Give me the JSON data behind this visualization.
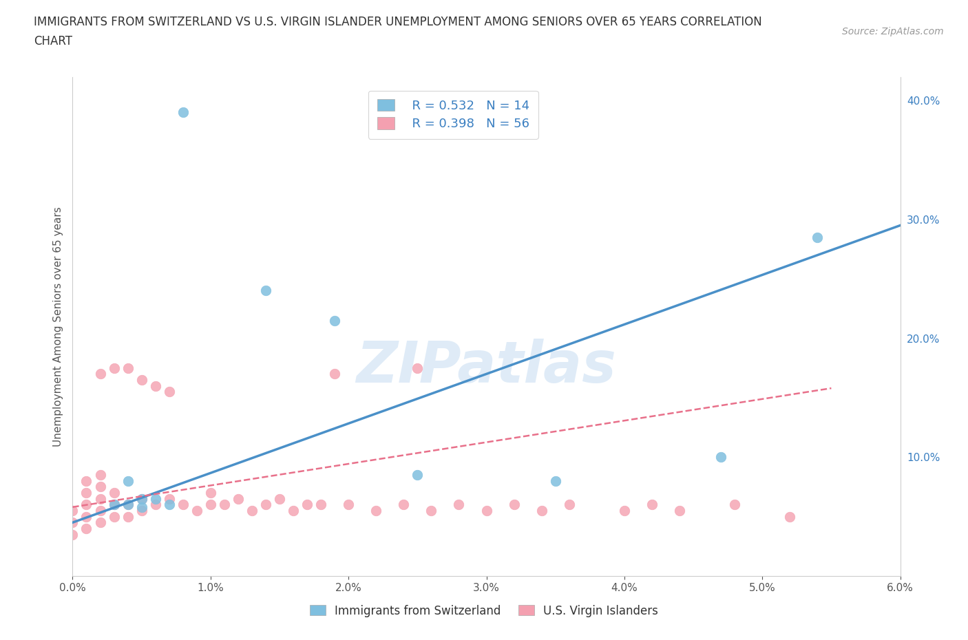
{
  "title_line1": "IMMIGRANTS FROM SWITZERLAND VS U.S. VIRGIN ISLANDER UNEMPLOYMENT AMONG SENIORS OVER 65 YEARS CORRELATION",
  "title_line2": "CHART",
  "source": "Source: ZipAtlas.com",
  "ylabel": "Unemployment Among Seniors over 65 years",
  "xlim": [
    0.0,
    0.06
  ],
  "ylim": [
    0.0,
    0.42
  ],
  "xticks": [
    0.0,
    0.01,
    0.02,
    0.03,
    0.04,
    0.05,
    0.06
  ],
  "xticklabels": [
    "0.0%",
    "1.0%",
    "2.0%",
    "3.0%",
    "4.0%",
    "5.0%",
    "6.0%"
  ],
  "yticks_right": [
    0.1,
    0.2,
    0.3,
    0.4
  ],
  "yticks_right_labels": [
    "10.0%",
    "20.0%",
    "30.0%",
    "40.0%"
  ],
  "legend_r1": "R = 0.532   N = 14",
  "legend_r2": "R = 0.398   N = 56",
  "blue_color": "#7fbfdf",
  "pink_color": "#f4a0b0",
  "blue_line_color": "#4a90c8",
  "pink_line_color": "#e8708a",
  "text_blue": "#3a7fc1",
  "watermark": "ZIPatlas",
  "blue_scatter_x": [
    0.003,
    0.004,
    0.004,
    0.005,
    0.005,
    0.006,
    0.007,
    0.008,
    0.014,
    0.019,
    0.025,
    0.035,
    0.047,
    0.054
  ],
  "blue_scatter_y": [
    0.06,
    0.06,
    0.08,
    0.058,
    0.065,
    0.065,
    0.06,
    0.39,
    0.24,
    0.215,
    0.085,
    0.08,
    0.1,
    0.285
  ],
  "pink_scatter_x": [
    0.0,
    0.0,
    0.0,
    0.001,
    0.001,
    0.001,
    0.001,
    0.001,
    0.002,
    0.002,
    0.002,
    0.002,
    0.002,
    0.002,
    0.003,
    0.003,
    0.003,
    0.003,
    0.004,
    0.004,
    0.004,
    0.005,
    0.005,
    0.005,
    0.006,
    0.006,
    0.007,
    0.007,
    0.008,
    0.009,
    0.01,
    0.01,
    0.011,
    0.012,
    0.013,
    0.014,
    0.015,
    0.016,
    0.017,
    0.018,
    0.019,
    0.02,
    0.022,
    0.024,
    0.025,
    0.026,
    0.028,
    0.03,
    0.032,
    0.034,
    0.036,
    0.04,
    0.042,
    0.044,
    0.048,
    0.052
  ],
  "pink_scatter_y": [
    0.035,
    0.045,
    0.055,
    0.04,
    0.05,
    0.06,
    0.07,
    0.08,
    0.045,
    0.055,
    0.065,
    0.075,
    0.085,
    0.17,
    0.05,
    0.06,
    0.07,
    0.175,
    0.05,
    0.06,
    0.175,
    0.055,
    0.065,
    0.165,
    0.06,
    0.16,
    0.065,
    0.155,
    0.06,
    0.055,
    0.06,
    0.07,
    0.06,
    0.065,
    0.055,
    0.06,
    0.065,
    0.055,
    0.06,
    0.06,
    0.17,
    0.06,
    0.055,
    0.06,
    0.175,
    0.055,
    0.06,
    0.055,
    0.06,
    0.055,
    0.06,
    0.055,
    0.06,
    0.055,
    0.06,
    0.05
  ],
  "blue_trend_x": [
    0.0,
    0.06
  ],
  "blue_trend_y": [
    0.045,
    0.295
  ],
  "pink_trend_x": [
    0.0,
    0.055
  ],
  "pink_trend_y": [
    0.058,
    0.158
  ],
  "grid_color": "#e0e0e0",
  "grid_linestyle": "--",
  "background_color": "#ffffff"
}
